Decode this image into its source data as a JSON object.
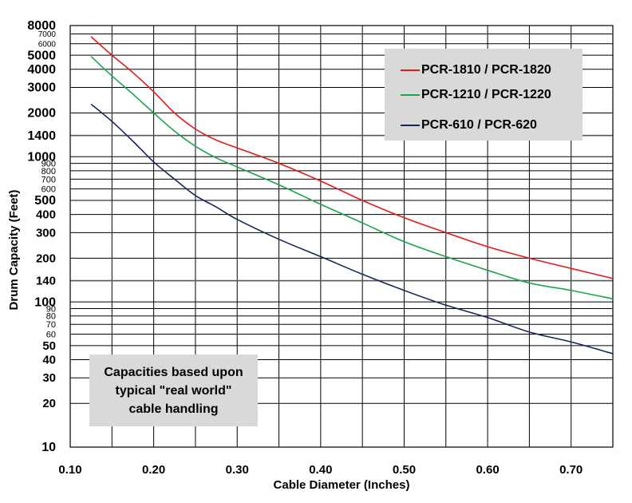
{
  "chart_data": {
    "type": "line",
    "title": "",
    "xlabel": "Cable Diameter (Inches)",
    "ylabel": "Drum Capacity (Feet)",
    "yscale": "log",
    "xlim": [
      0.1,
      0.75
    ],
    "ylim": [
      10,
      8000
    ],
    "grid": true,
    "x_tick_labels": [
      "0.10",
      "0.20",
      "0.30",
      "0.40",
      "0.50",
      "0.60",
      "0.70"
    ],
    "x_ticks": [
      0.1,
      0.2,
      0.3,
      0.4,
      0.5,
      0.6,
      0.7
    ],
    "x_grid": [
      0.1,
      0.15,
      0.2,
      0.25,
      0.3,
      0.35,
      0.4,
      0.45,
      0.5,
      0.55,
      0.6,
      0.65,
      0.7,
      0.75
    ],
    "y_ticks_major": [
      {
        "v": 8000,
        "label": "8000"
      },
      {
        "v": 5000,
        "label": "5000"
      },
      {
        "v": 4000,
        "label": "4000"
      },
      {
        "v": 3000,
        "label": "3000"
      },
      {
        "v": 2000,
        "label": "2000"
      },
      {
        "v": 1400,
        "label": "1400"
      },
      {
        "v": 1000,
        "label": "1000"
      },
      {
        "v": 500,
        "label": "500"
      },
      {
        "v": 400,
        "label": "400"
      },
      {
        "v": 300,
        "label": "300"
      },
      {
        "v": 200,
        "label": "200"
      },
      {
        "v": 140,
        "label": "140"
      },
      {
        "v": 100,
        "label": "100"
      },
      {
        "v": 50,
        "label": "50"
      },
      {
        "v": 40,
        "label": "40"
      },
      {
        "v": 30,
        "label": "30"
      },
      {
        "v": 20,
        "label": "20"
      },
      {
        "v": 10,
        "label": "10"
      }
    ],
    "y_ticks_minor": [
      {
        "v": 7000,
        "label": "7000"
      },
      {
        "v": 6000,
        "label": "6000"
      },
      {
        "v": 900,
        "label": "900"
      },
      {
        "v": 800,
        "label": "800"
      },
      {
        "v": 700,
        "label": "700"
      },
      {
        "v": 600,
        "label": "600"
      },
      {
        "v": 90,
        "label": "90"
      },
      {
        "v": 80,
        "label": "80"
      },
      {
        "v": 70,
        "label": "70"
      },
      {
        "v": 60,
        "label": "60"
      }
    ],
    "y_grid_emphasis": [
      1400,
      140
    ],
    "series": [
      {
        "name": "PCR-1810 / PCR-1820",
        "color": "#e31a1c",
        "x": [
          0.125,
          0.15,
          0.175,
          0.2,
          0.225,
          0.25,
          0.275,
          0.3,
          0.35,
          0.4,
          0.45,
          0.5,
          0.55,
          0.6,
          0.65,
          0.7,
          0.75
        ],
        "y": [
          6700,
          5000,
          3800,
          2800,
          2000,
          1550,
          1300,
          1150,
          900,
          680,
          500,
          380,
          300,
          240,
          200,
          170,
          145
        ]
      },
      {
        "name": "PCR-1210 / PCR-1220",
        "color": "#1aa64b",
        "x": [
          0.125,
          0.15,
          0.175,
          0.2,
          0.225,
          0.25,
          0.275,
          0.3,
          0.35,
          0.4,
          0.45,
          0.5,
          0.55,
          0.6,
          0.65,
          0.7,
          0.75
        ],
        "y": [
          4900,
          3600,
          2700,
          2000,
          1500,
          1180,
          980,
          850,
          640,
          470,
          350,
          260,
          205,
          165,
          135,
          120,
          105
        ]
      },
      {
        "name": "PCR-610 / PCR-620",
        "color": "#14295a",
        "x": [
          0.125,
          0.15,
          0.175,
          0.2,
          0.225,
          0.25,
          0.275,
          0.3,
          0.35,
          0.4,
          0.45,
          0.5,
          0.55,
          0.6,
          0.65,
          0.7,
          0.75
        ],
        "y": [
          2300,
          1750,
          1280,
          920,
          700,
          540,
          450,
          370,
          270,
          205,
          155,
          120,
          95,
          78,
          62,
          53,
          44
        ]
      }
    ]
  },
  "legend": {
    "items": [
      {
        "label": "PCR-1810 / PCR-1820",
        "color": "#e31a1c"
      },
      {
        "label": "PCR-1210 / PCR-1220",
        "color": "#1aa64b"
      },
      {
        "label": "PCR-610 / PCR-620",
        "color": "#14295a"
      }
    ]
  },
  "note": {
    "lines": [
      "Capacities based upon",
      "typical \"real world\"",
      "cable handling"
    ]
  }
}
